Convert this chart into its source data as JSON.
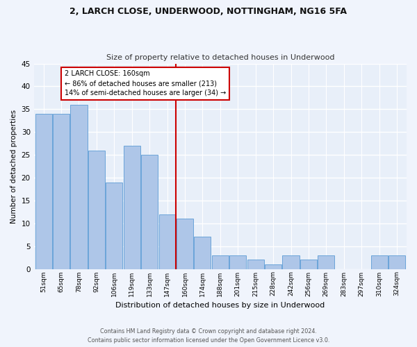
{
  "title1": "2, LARCH CLOSE, UNDERWOOD, NOTTINGHAM, NG16 5FA",
  "title2": "Size of property relative to detached houses in Underwood",
  "xlabel": "Distribution of detached houses by size in Underwood",
  "ylabel": "Number of detached properties",
  "categories": [
    "51sqm",
    "65sqm",
    "78sqm",
    "92sqm",
    "106sqm",
    "119sqm",
    "133sqm",
    "147sqm",
    "160sqm",
    "174sqm",
    "188sqm",
    "201sqm",
    "215sqm",
    "228sqm",
    "242sqm",
    "256sqm",
    "269sqm",
    "283sqm",
    "297sqm",
    "310sqm",
    "324sqm"
  ],
  "values": [
    34,
    34,
    36,
    26,
    19,
    27,
    25,
    12,
    11,
    7,
    3,
    3,
    2,
    1,
    3,
    2,
    3,
    0,
    0,
    3,
    3
  ],
  "bar_color": "#aec6e8",
  "bar_edge_color": "#5b9bd5",
  "highlight_index": 8,
  "vline_color": "#cc0000",
  "annotation_line1": "2 LARCH CLOSE: 160sqm",
  "annotation_line2": "← 86% of detached houses are smaller (213)",
  "annotation_line3": "14% of semi-detached houses are larger (34) →",
  "annotation_box_color": "#cc0000",
  "footer1": "Contains HM Land Registry data © Crown copyright and database right 2024.",
  "footer2": "Contains public sector information licensed under the Open Government Licence v3.0.",
  "ylim": [
    0,
    45
  ],
  "yticks": [
    0,
    5,
    10,
    15,
    20,
    25,
    30,
    35,
    40,
    45
  ],
  "bg_color": "#e8eff9",
  "grid_color": "#ffffff",
  "fig_bg": "#f0f4fc"
}
